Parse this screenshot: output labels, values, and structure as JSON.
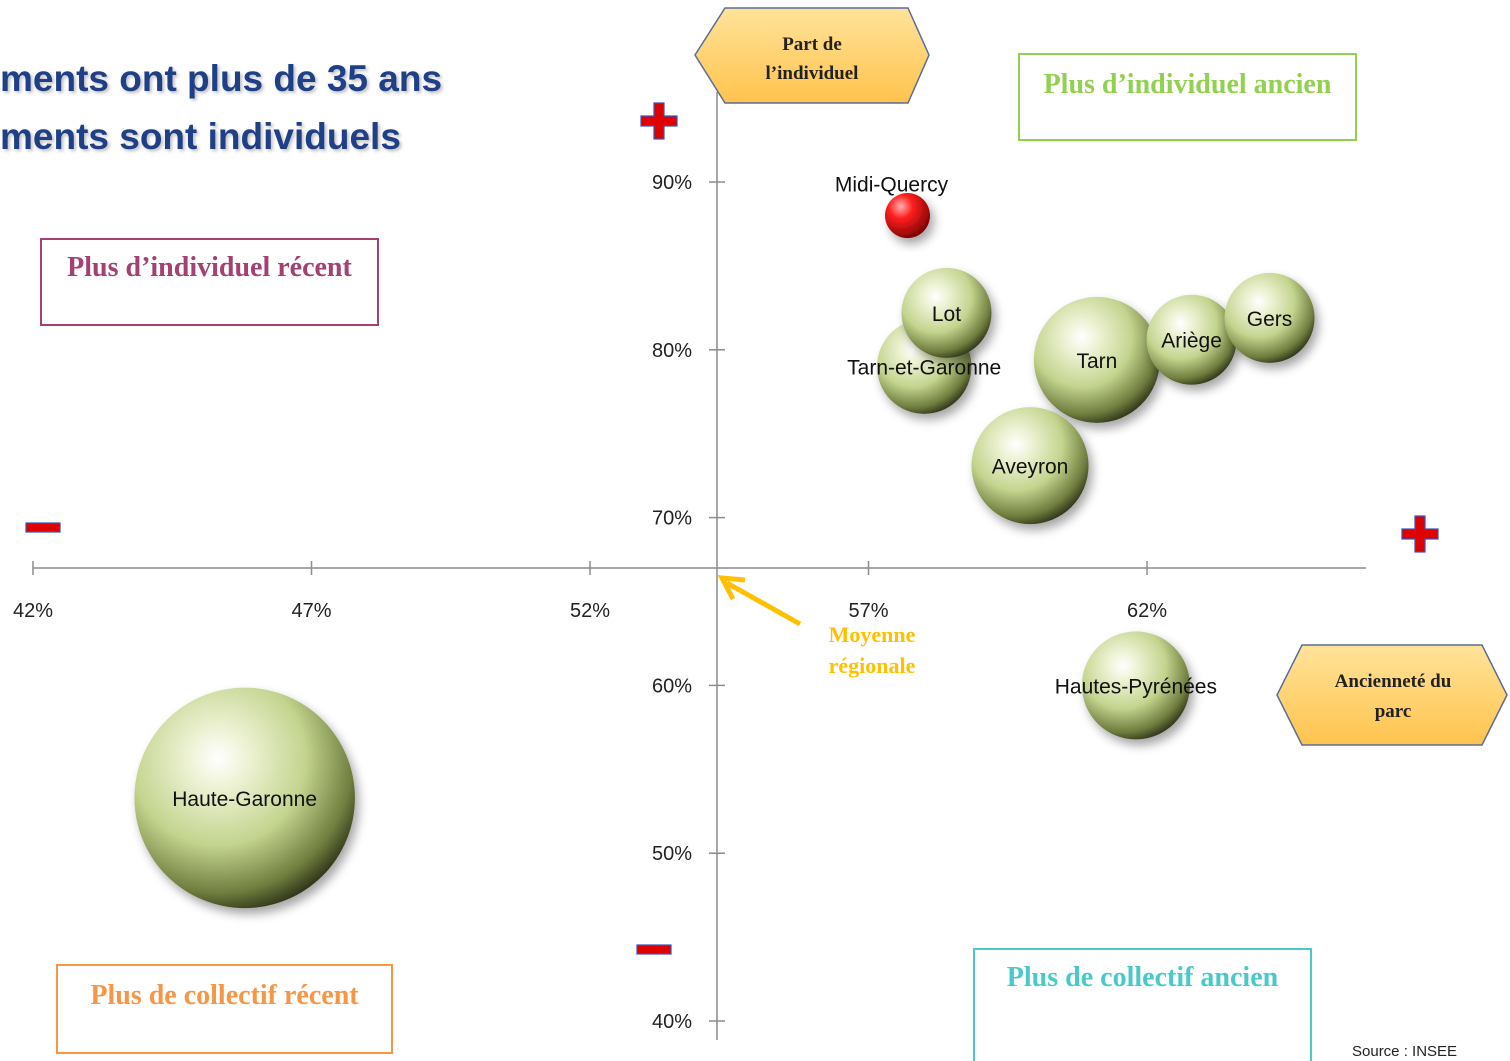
{
  "title_lines": [
    "ments ont plus de 35 ans",
    "ments sont individuels"
  ],
  "quadrants": {
    "top_left": "Plus d’individuel récent",
    "top_right": "Plus d’individuel ancien",
    "bottom_left": "Plus de collectif récent",
    "bottom_right": "Plus de collectif ancien"
  },
  "axis_tags": {
    "y": "Part de l’individuel",
    "x": "Ancienneté du parc"
  },
  "average_label": "Moyenne régionale",
  "source": "Source : INSEE",
  "chart_data": {
    "type": "scatter",
    "subtype": "bubble",
    "xlabel": "Ancienneté du parc",
    "ylabel": "Part de l’individuel",
    "xlim": [
      41.8,
      65.5
    ],
    "ylim": [
      40,
      92
    ],
    "x_ticks": [
      42,
      47,
      52,
      57,
      62
    ],
    "x_tick_labels": [
      "42%",
      "47%",
      "52%",
      "57%",
      "62%"
    ],
    "y_ticks": [
      40,
      50,
      60,
      70,
      80,
      90
    ],
    "y_tick_labels": [
      "40%",
      "50%",
      "60%",
      "70%",
      "80%",
      "90%"
    ],
    "origin": {
      "x": 54.3,
      "y": 67
    },
    "points": [
      {
        "label": "Midi-Quercy",
        "x": 57.7,
        "y": 88.0,
        "size": 1.0,
        "highlight": true
      },
      {
        "label": "Lot",
        "x": 58.4,
        "y": 82.2,
        "size": 2.0
      },
      {
        "label": "Tarn-et-Garonne",
        "x": 58.0,
        "y": 79.0,
        "size": 2.1
      },
      {
        "label": "Tarn",
        "x": 61.1,
        "y": 79.4,
        "size": 2.8
      },
      {
        "label": "Ariège",
        "x": 62.8,
        "y": 80.6,
        "size": 2.0
      },
      {
        "label": "Gers",
        "x": 64.2,
        "y": 81.9,
        "size": 2.0
      },
      {
        "label": "Aveyron",
        "x": 59.9,
        "y": 73.1,
        "size": 2.6
      },
      {
        "label": "Hautes-Pyrénées",
        "x": 61.8,
        "y": 60.0,
        "size": 2.4
      },
      {
        "label": "Haute-Garonne",
        "x": 45.8,
        "y": 53.3,
        "size": 4.9
      }
    ],
    "colors": {
      "bubble": "#c3d48e",
      "highlight": "#e00000",
      "axis": "#7f7f7f",
      "accent": "#ffc000"
    }
  }
}
